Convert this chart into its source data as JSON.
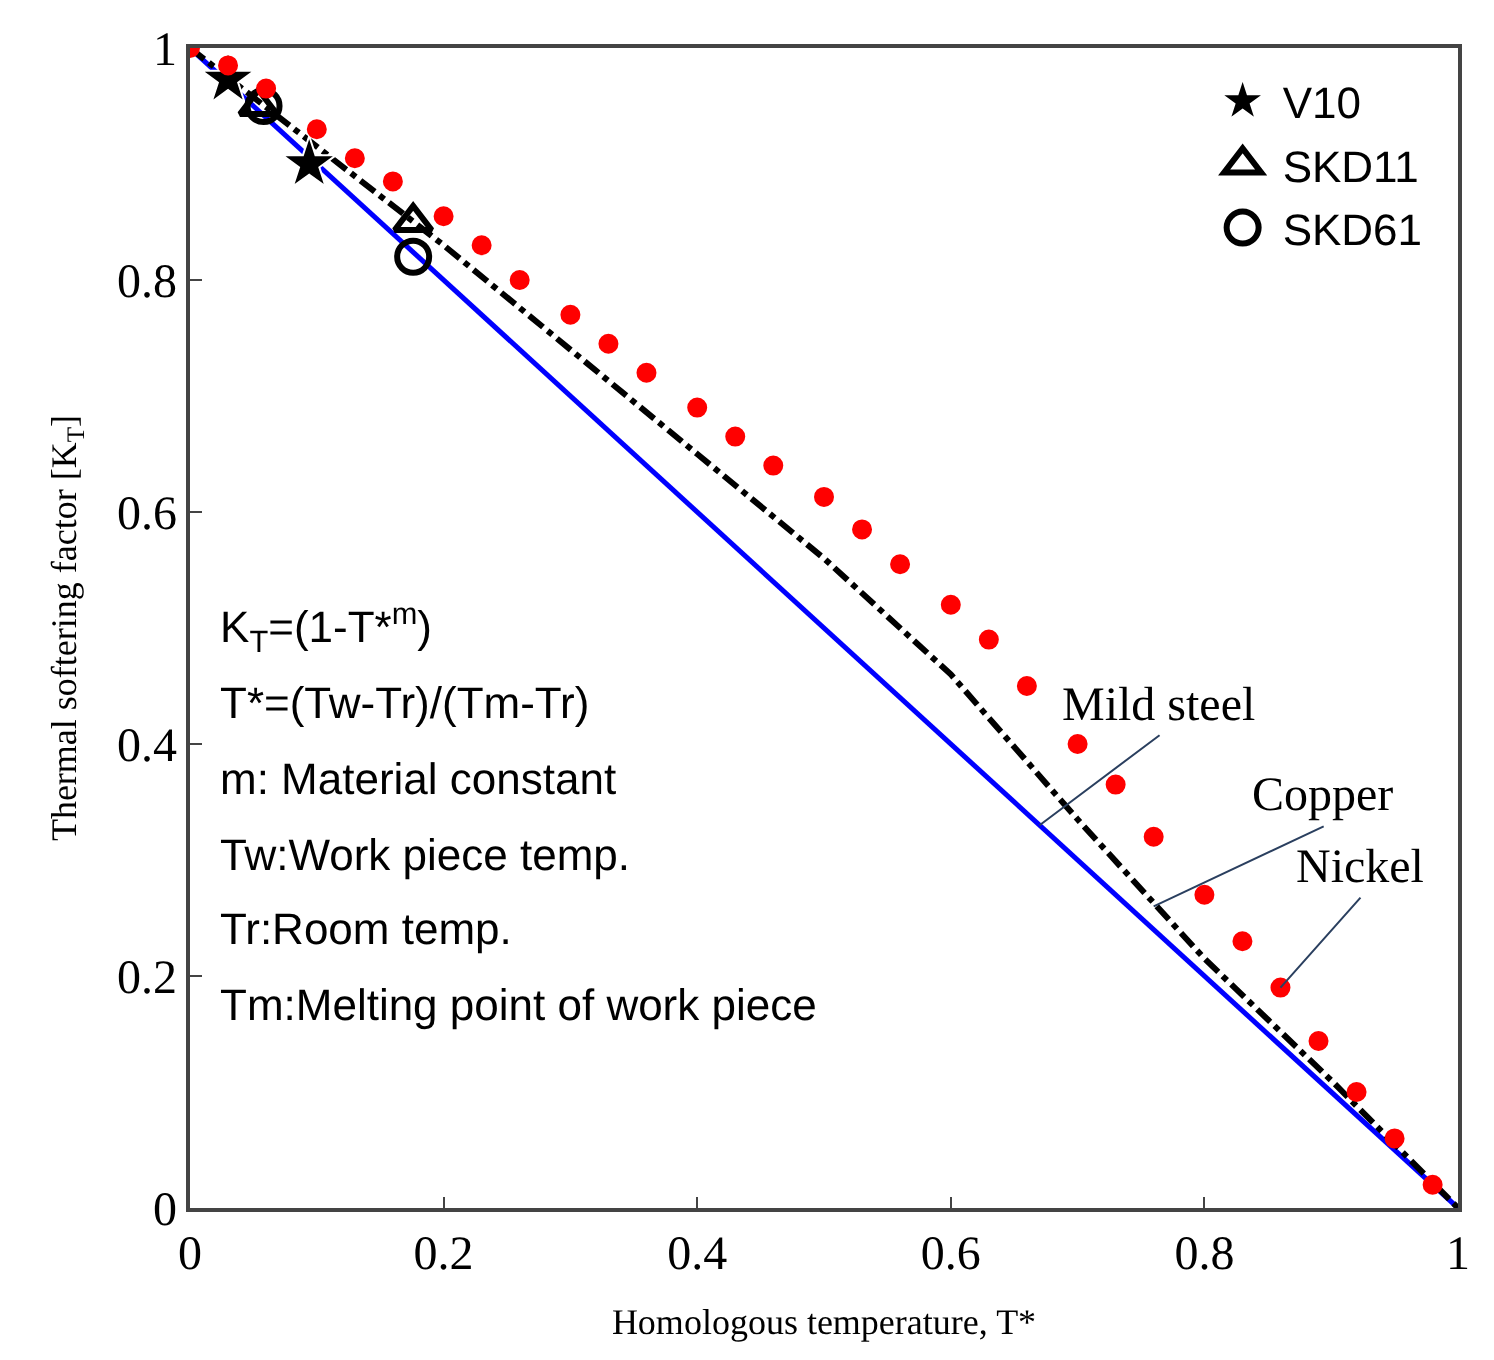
{
  "chart_data": {
    "type": "line",
    "xlabel": "Homologous temperature, T*",
    "ylabel": "Thermal softering factor [K$_{T}$]",
    "xlim": [
      0,
      1
    ],
    "ylim": [
      0,
      1
    ],
    "xticks": [
      0,
      0.2,
      0.4,
      0.6,
      0.8,
      1
    ],
    "yticks": [
      0,
      0.2,
      0.4,
      0.6,
      0.8,
      1
    ],
    "legend": "top right",
    "series": [
      {
        "color": "#0000ff",
        "line_style": "solid",
        "marker": "none",
        "x": [
          0,
          1
        ],
        "values": [
          1,
          0
        ]
      },
      {
        "color": "#000000",
        "line_style": "dashdot",
        "marker": "none",
        "x": [
          0,
          0.1,
          0.2,
          0.3,
          0.4,
          0.5,
          0.6,
          0.7,
          0.8,
          0.9,
          1
        ],
        "values": [
          1,
          0.915,
          0.83,
          0.74,
          0.65,
          0.56,
          0.46,
          0.335,
          0.215,
          0.11,
          0
        ]
      },
      {
        "type": "scatter",
        "name": "V10",
        "color": "#000000",
        "marker": "star",
        "x": [
          0.03,
          0.094
        ],
        "values": [
          0.973,
          0.9
        ]
      },
      {
        "type": "scatter",
        "name": "SKD11",
        "color": "#000000",
        "marker": "triangle",
        "x": [
          0.054,
          0.176
        ],
        "values": [
          0.95,
          0.85
        ]
      },
      {
        "type": "scatter",
        "name": "SKD61",
        "color": "#000000",
        "marker": "circle-open",
        "x": [
          0.058,
          0.176
        ],
        "values": [
          0.95,
          0.82
        ]
      },
      {
        "type": "scatter",
        "color": "#ff0000",
        "marker": "circle",
        "x": [
          0,
          0.03,
          0.06,
          0.1,
          0.13,
          0.16,
          0.2,
          0.23,
          0.26,
          0.3,
          0.33,
          0.36,
          0.4,
          0.43,
          0.46,
          0.5,
          0.53,
          0.56,
          0.6,
          0.63,
          0.66,
          0.7,
          0.73,
          0.76,
          0.8,
          0.83,
          0.86,
          0.89,
          0.92,
          0.95,
          0.98
        ],
        "values": [
          1,
          0.985,
          0.965,
          0.93,
          0.905,
          0.885,
          0.855,
          0.83,
          0.8,
          0.77,
          0.745,
          0.72,
          0.69,
          0.665,
          0.64,
          0.613,
          0.585,
          0.555,
          0.52,
          0.49,
          0.45,
          0.4,
          0.365,
          0.32,
          0.27,
          0.23,
          0.19,
          0.144,
          0.1,
          0.06,
          0.02
        ]
      }
    ],
    "annotations": [
      {
        "text": "Mild steel",
        "x": 0.67,
        "y": 0.33
      },
      {
        "text": "Copper",
        "x": 0.76,
        "y": 0.26
      },
      {
        "text": "Nickel",
        "x": 0.86,
        "y": 0.19
      },
      "K$_{T}$=(1-T*$^{m}$)",
      "T*=(Tw-Tr)/(Tm-Tr)",
      "m: Material constant",
      "Tw:Work piece temp.",
      "Tr:Room temp.",
      "Tm:Melting point of work piece"
    ]
  }
}
